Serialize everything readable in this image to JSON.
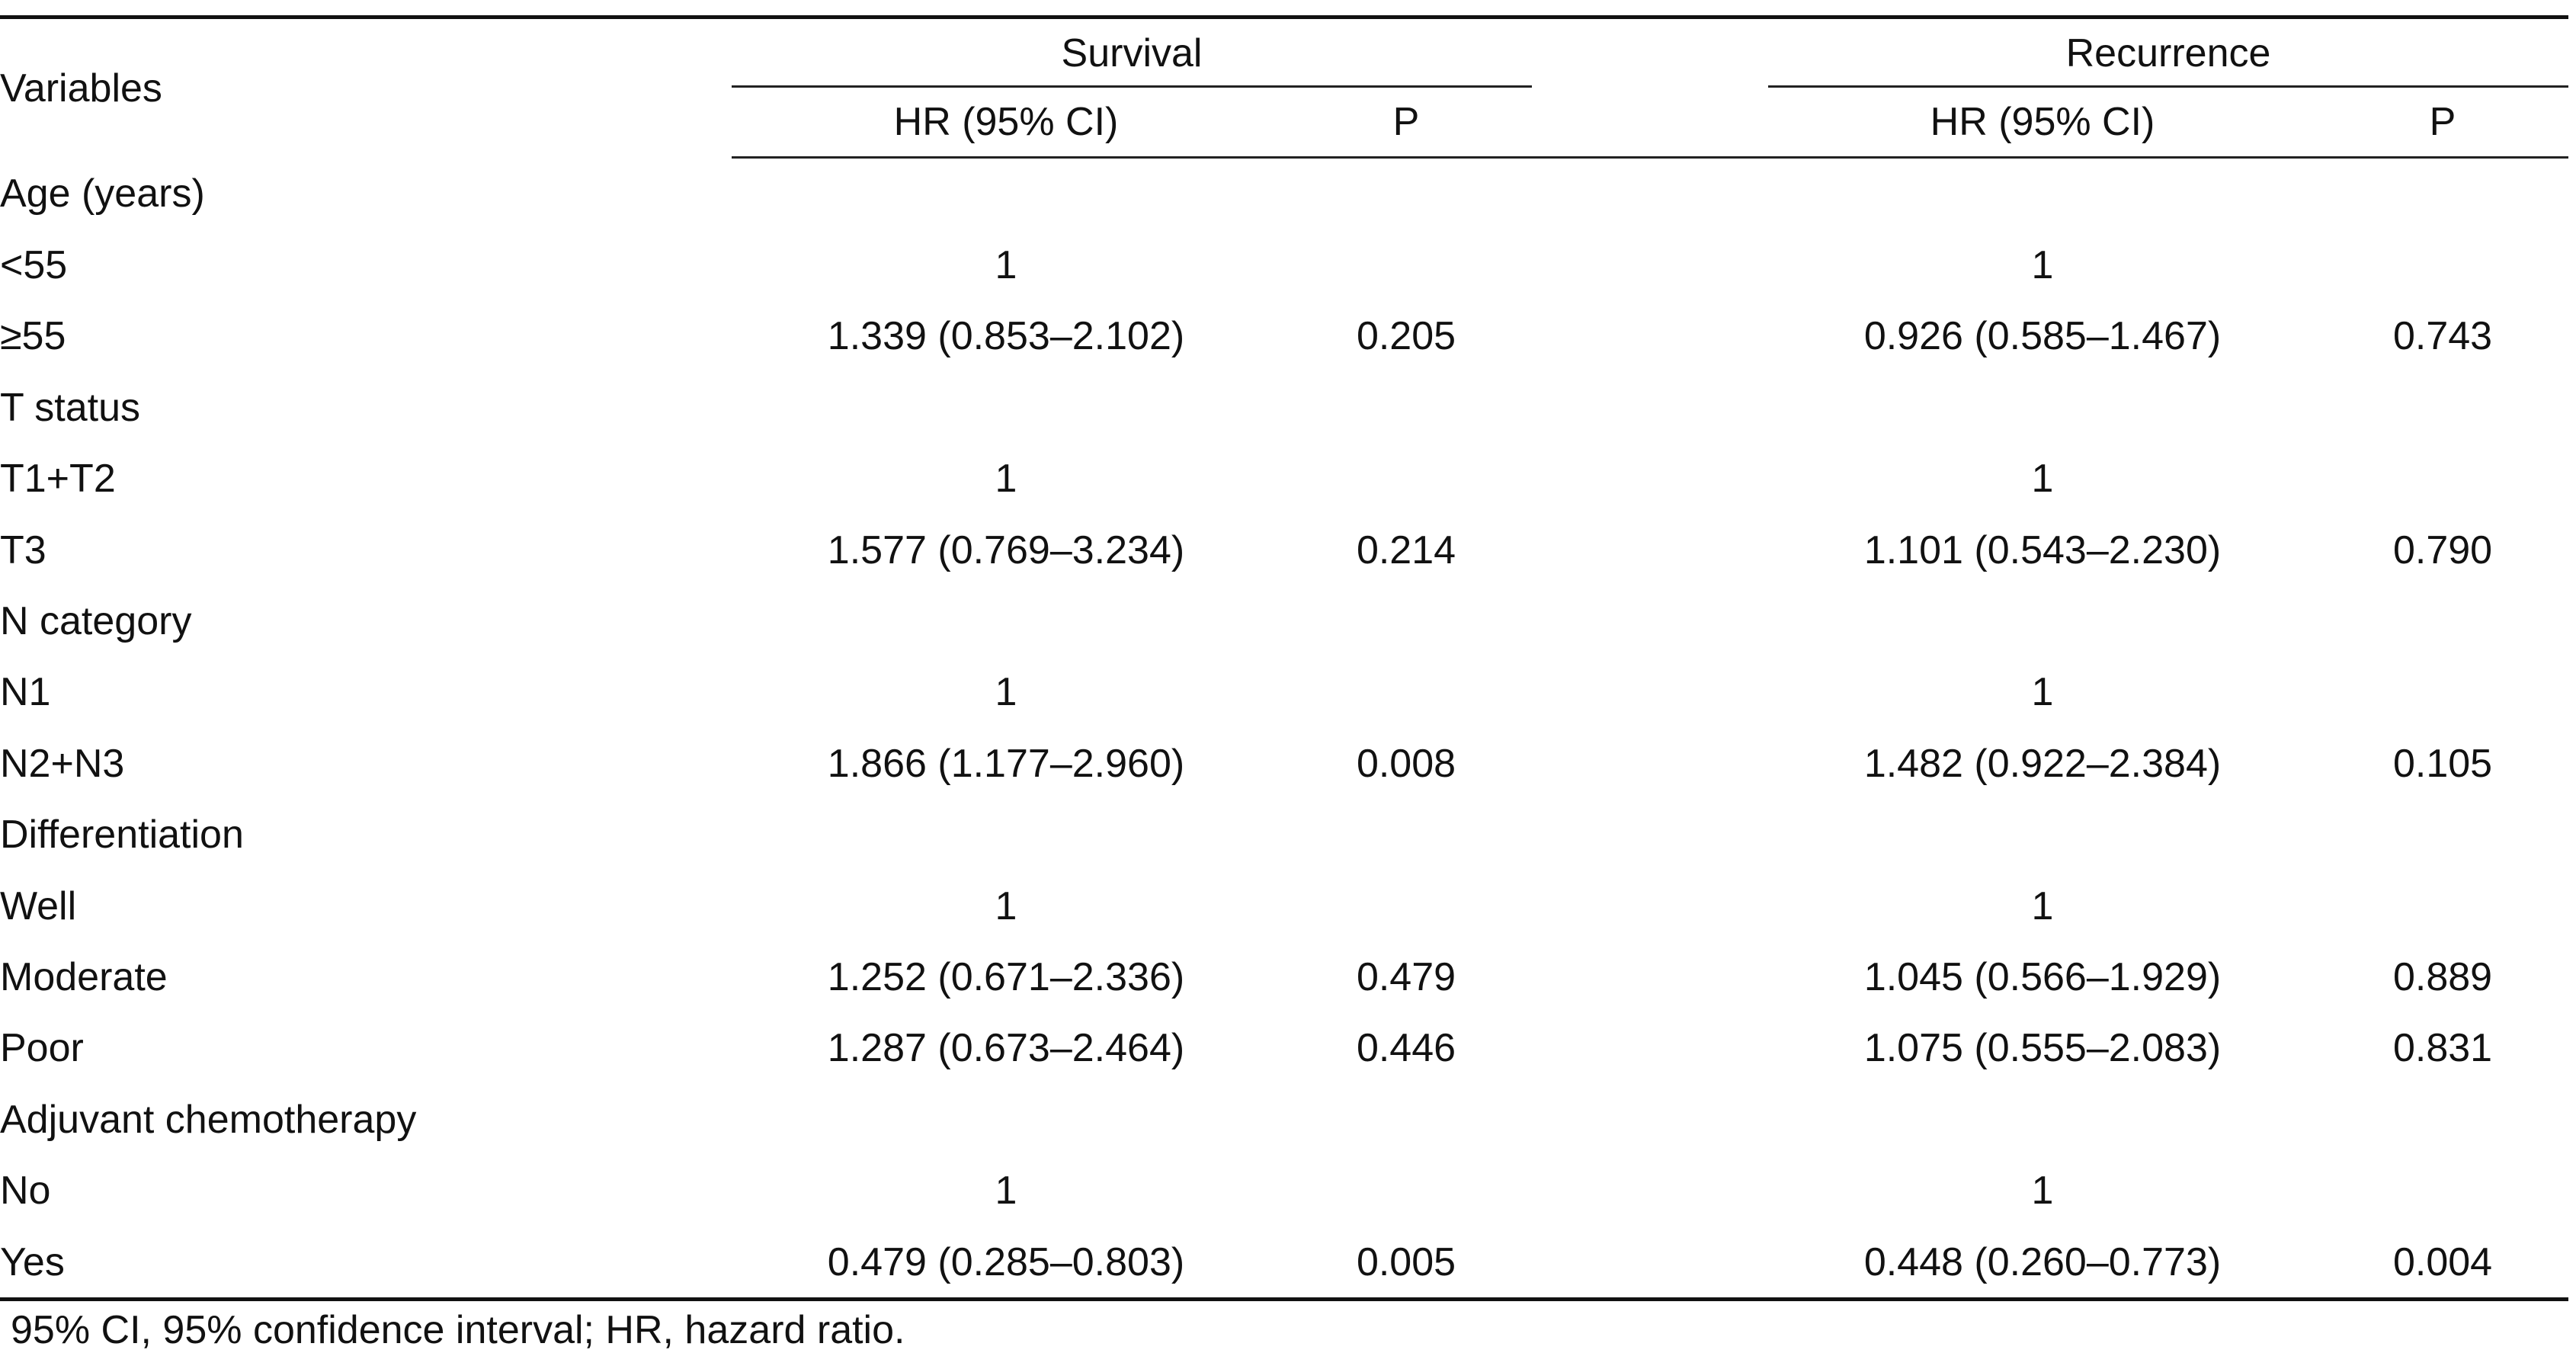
{
  "table": {
    "header": {
      "variables": "Variables",
      "survival": "Survival",
      "recurrence": "Recurrence",
      "hr_ci": "HR (95% CI)",
      "p": "P"
    },
    "rows": [
      {
        "type": "category",
        "label": "Age (years)",
        "s_hr": "",
        "s_p": "",
        "r_hr": "",
        "r_p": ""
      },
      {
        "type": "level",
        "label": "<55",
        "s_hr": "1",
        "s_p": "",
        "r_hr": "1",
        "r_p": ""
      },
      {
        "type": "level",
        "label": "≥55",
        "s_hr": "1.339 (0.853–2.102)",
        "s_p": "0.205",
        "r_hr": "0.926 (0.585–1.467)",
        "r_p": "0.743"
      },
      {
        "type": "category",
        "label": "T status",
        "s_hr": "",
        "s_p": "",
        "r_hr": "",
        "r_p": ""
      },
      {
        "type": "level",
        "label": "T1+T2",
        "s_hr": "1",
        "s_p": "",
        "r_hr": "1",
        "r_p": ""
      },
      {
        "type": "level",
        "label": "T3",
        "s_hr": "1.577 (0.769–3.234)",
        "s_p": "0.214",
        "r_hr": "1.101 (0.543–2.230)",
        "r_p": "0.790"
      },
      {
        "type": "category",
        "label": "N category",
        "s_hr": "",
        "s_p": "",
        "r_hr": "",
        "r_p": ""
      },
      {
        "type": "level",
        "label": "N1",
        "s_hr": "1",
        "s_p": "",
        "r_hr": "1",
        "r_p": ""
      },
      {
        "type": "level",
        "label": "N2+N3",
        "s_hr": "1.866 (1.177–2.960)",
        "s_p": "0.008",
        "r_hr": "1.482 (0.922–2.384)",
        "r_p": "0.105"
      },
      {
        "type": "category",
        "label": "Differentiation",
        "s_hr": "",
        "s_p": "",
        "r_hr": "",
        "r_p": ""
      },
      {
        "type": "level",
        "label": "Well",
        "s_hr": "1",
        "s_p": "",
        "r_hr": "1",
        "r_p": ""
      },
      {
        "type": "level",
        "label": "Moderate",
        "s_hr": "1.252 (0.671–2.336)",
        "s_p": "0.479",
        "r_hr": "1.045 (0.566–1.929)",
        "r_p": "0.889"
      },
      {
        "type": "level",
        "label": "Poor",
        "s_hr": "1.287 (0.673–2.464)",
        "s_p": "0.446",
        "r_hr": "1.075 (0.555–2.083)",
        "r_p": "0.831"
      },
      {
        "type": "category",
        "label": "Adjuvant chemotherapy",
        "s_hr": "",
        "s_p": "",
        "r_hr": "",
        "r_p": ""
      },
      {
        "type": "level",
        "label": "No",
        "s_hr": "1",
        "s_p": "",
        "r_hr": "1",
        "r_p": ""
      },
      {
        "type": "level",
        "label": "Yes",
        "s_hr": "0.479 (0.285–0.803)",
        "s_p": "0.005",
        "r_hr": "0.448 (0.260–0.773)",
        "r_p": "0.004"
      }
    ]
  },
  "footnote": "95% CI, 95% confidence interval; HR, hazard ratio."
}
